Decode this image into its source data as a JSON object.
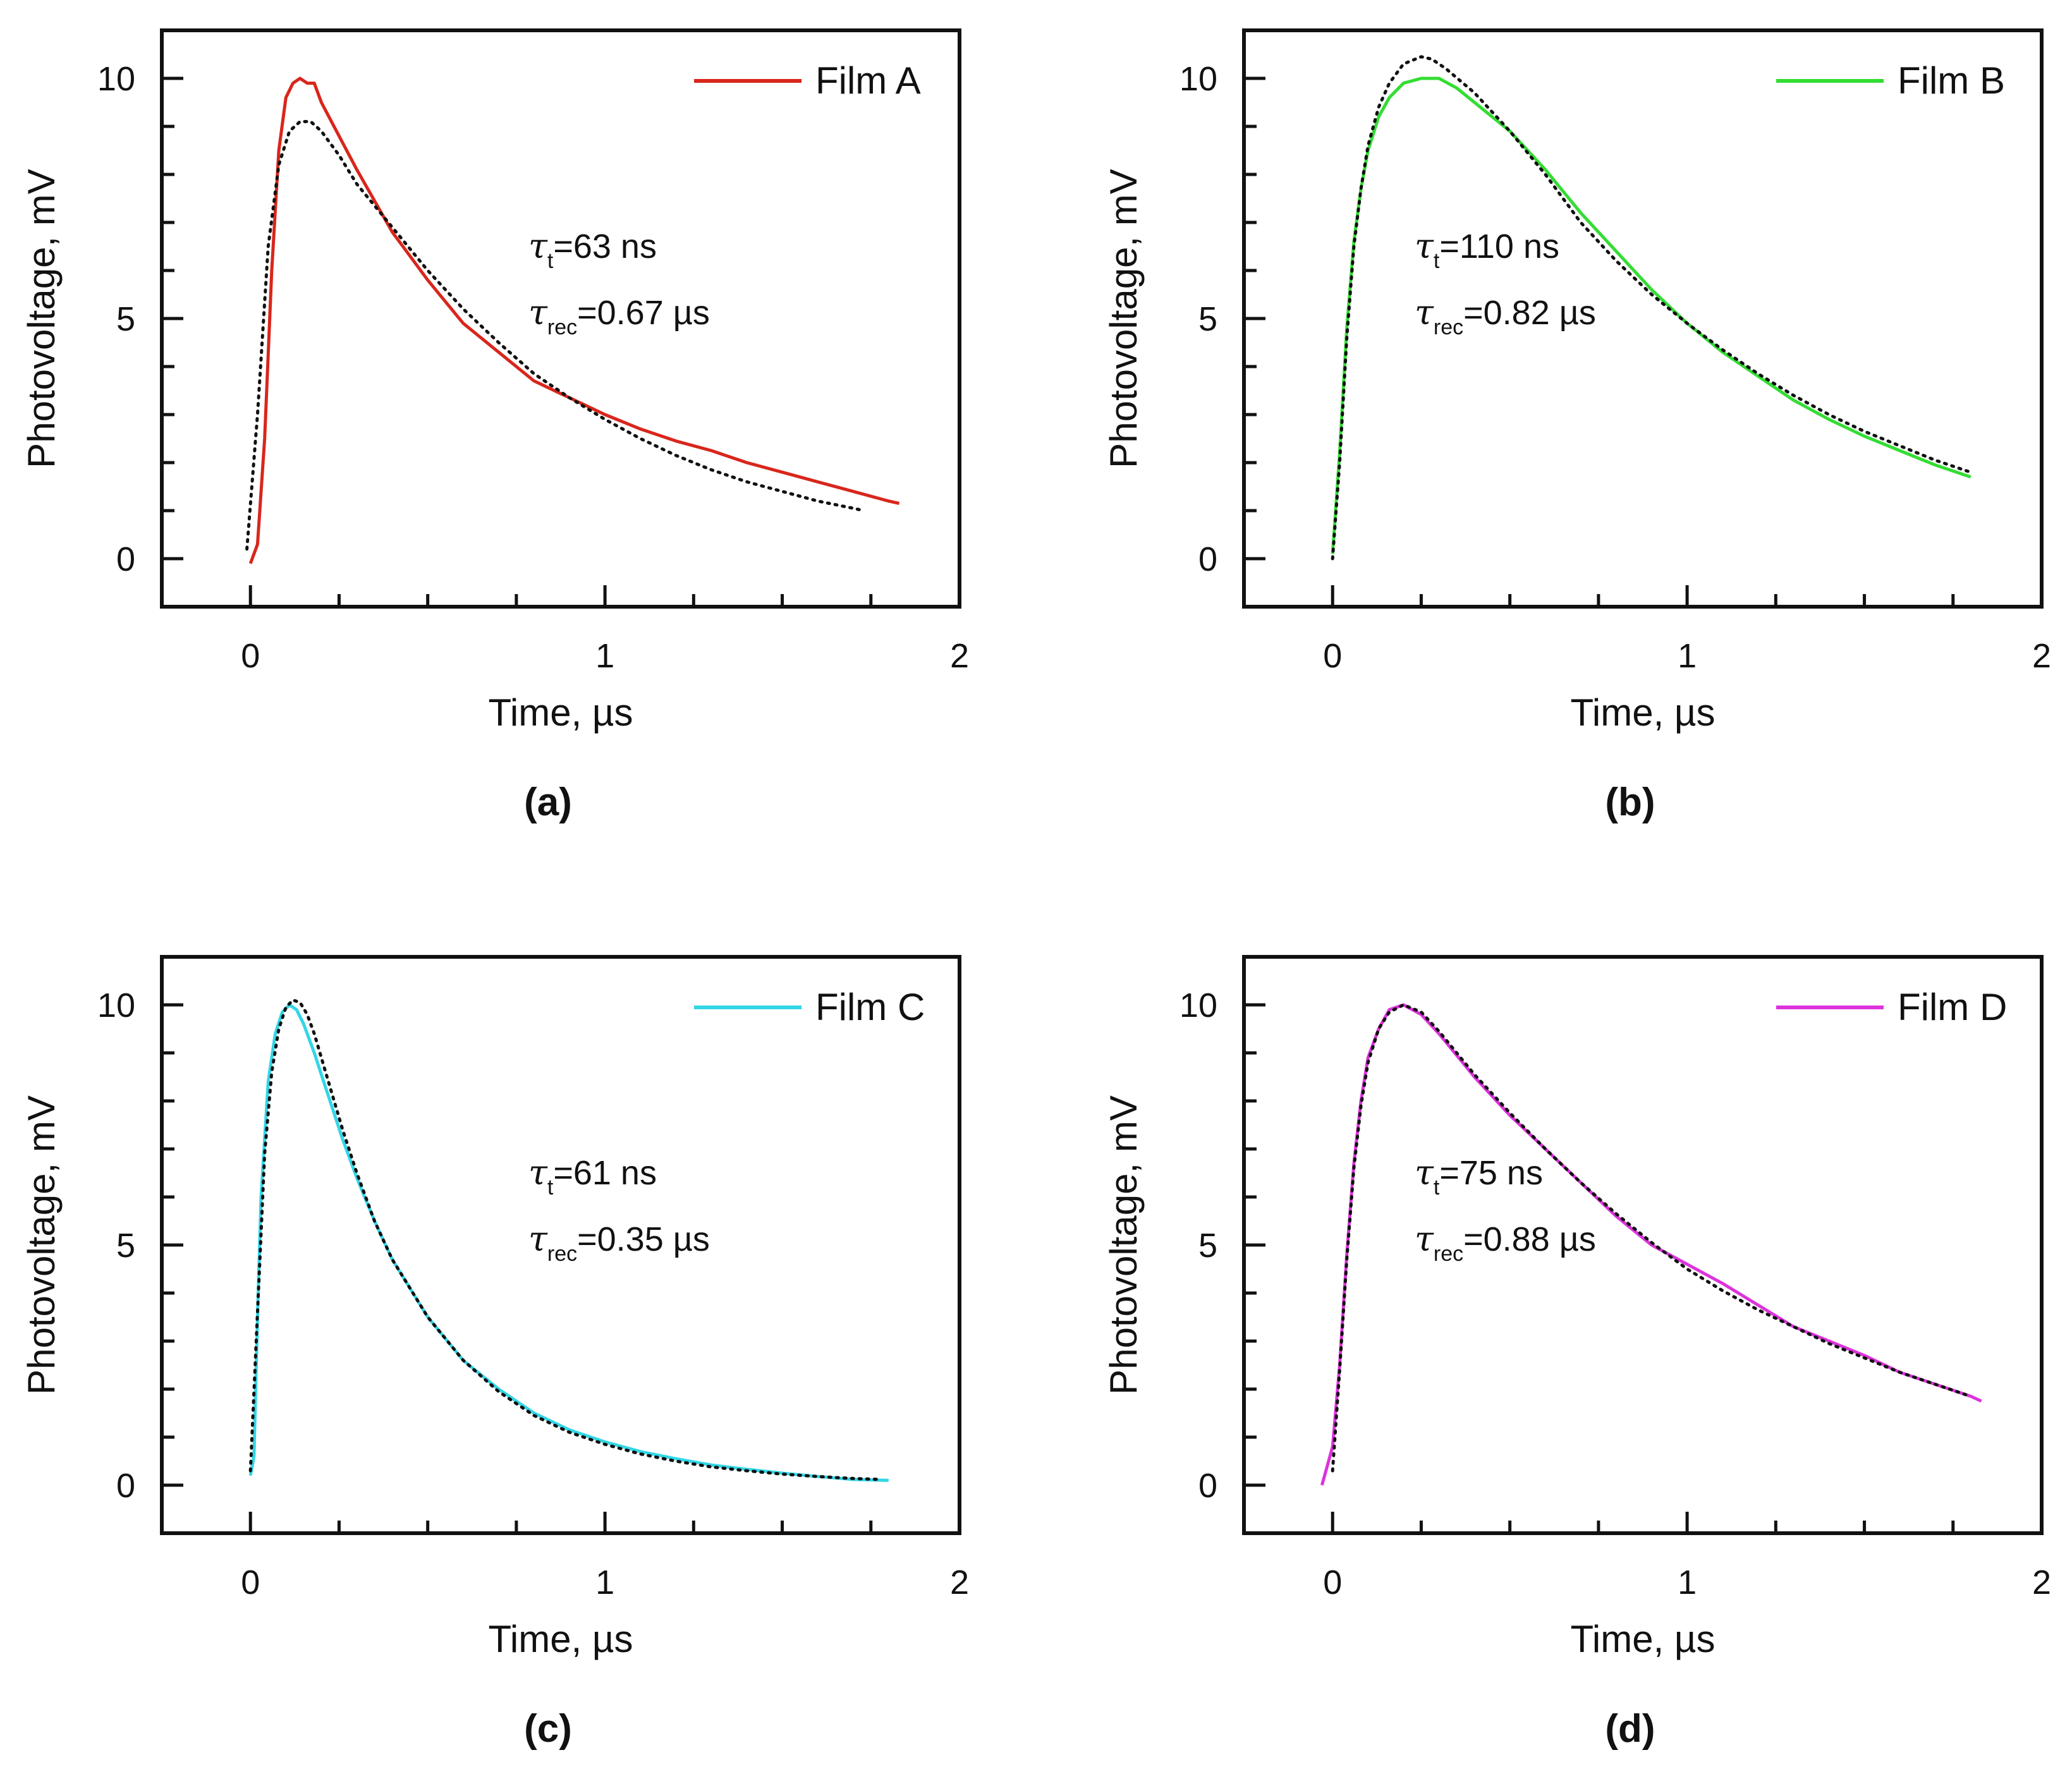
{
  "figure": {
    "panels": [
      {
        "caption": "(a)",
        "legend_label": "Film A",
        "color": "#d9261c",
        "tau_t_text": "=63 ns",
        "tau_t_sub": "t",
        "tau_rec_text": "=0.67 µs",
        "tau_rec_sub": "rec"
      },
      {
        "caption": "(b)",
        "legend_label": "Film B",
        "color": "#33dd33",
        "tau_t_text": "=110 ns",
        "tau_t_sub": "t",
        "tau_rec_text": "=0.82 µs",
        "tau_rec_sub": "rec"
      },
      {
        "caption": "(c)",
        "legend_label": "Film C",
        "color": "#33d6e6",
        "tau_t_text": "=61 ns",
        "tau_t_sub": "t",
        "tau_rec_text": "=0.35 µs",
        "tau_rec_sub": "rec"
      },
      {
        "caption": "(d)",
        "legend_label": "Film D",
        "color": "#dd33dd",
        "tau_t_text": "=75 ns",
        "tau_t_sub": "t",
        "tau_rec_text": "=0.88 µs",
        "tau_rec_sub": "rec"
      }
    ],
    "tau_symbol": "τ"
  },
  "chart_data": [
    {
      "type": "line",
      "xlabel": "Time, µs",
      "ylabel": "Photovoltage, mV",
      "xlim": [
        -0.25,
        2.0
      ],
      "ylim": [
        -1.0,
        11.0
      ],
      "x_ticks": [
        0,
        1,
        2
      ],
      "y_ticks": [
        0,
        5,
        10
      ],
      "legend_position": "top-right",
      "grid": false,
      "series": [
        {
          "name": "Film A",
          "style": "solid",
          "x": [
            0.0,
            0.02,
            0.04,
            0.06,
            0.08,
            0.1,
            0.12,
            0.14,
            0.16,
            0.18,
            0.2,
            0.25,
            0.3,
            0.4,
            0.5,
            0.6,
            0.7,
            0.8,
            0.9,
            1.0,
            1.1,
            1.2,
            1.3,
            1.4,
            1.5,
            1.6,
            1.7,
            1.8,
            1.83
          ],
          "y": [
            -0.1,
            0.3,
            2.5,
            6.0,
            8.5,
            9.6,
            9.9,
            10.0,
            9.9,
            9.9,
            9.5,
            8.8,
            8.1,
            6.8,
            5.8,
            4.9,
            4.3,
            3.7,
            3.35,
            3.0,
            2.7,
            2.45,
            2.25,
            2.0,
            1.8,
            1.6,
            1.4,
            1.2,
            1.15
          ]
        },
        {
          "name": "",
          "style": "dotted",
          "x": [
            -0.01,
            0.02,
            0.05,
            0.08,
            0.11,
            0.14,
            0.17,
            0.2,
            0.25,
            0.3,
            0.4,
            0.5,
            0.6,
            0.7,
            0.8,
            0.9,
            1.0,
            1.1,
            1.2,
            1.3,
            1.4,
            1.5,
            1.6,
            1.7,
            1.73
          ],
          "y": [
            0.2,
            3.0,
            6.5,
            8.2,
            8.9,
            9.1,
            9.1,
            8.9,
            8.4,
            7.8,
            6.9,
            6.0,
            5.2,
            4.5,
            3.85,
            3.35,
            2.9,
            2.5,
            2.15,
            1.85,
            1.6,
            1.4,
            1.2,
            1.05,
            1.0
          ]
        }
      ]
    },
    {
      "type": "line",
      "xlabel": "Time, µs",
      "ylabel": "Photovoltage, mV",
      "xlim": [
        -0.25,
        2.0
      ],
      "ylim": [
        -1.0,
        11.0
      ],
      "x_ticks": [
        0,
        1,
        2
      ],
      "y_ticks": [
        0,
        5,
        10
      ],
      "legend_position": "top-right",
      "grid": false,
      "series": [
        {
          "name": "Film B",
          "style": "solid",
          "x": [
            0.0,
            0.02,
            0.04,
            0.06,
            0.08,
            0.1,
            0.13,
            0.16,
            0.2,
            0.25,
            0.3,
            0.35,
            0.4,
            0.5,
            0.6,
            0.7,
            0.8,
            0.9,
            1.0,
            1.1,
            1.2,
            1.3,
            1.4,
            1.5,
            1.6,
            1.7,
            1.8
          ],
          "y": [
            0.1,
            2.2,
            4.8,
            6.6,
            7.7,
            8.5,
            9.2,
            9.6,
            9.9,
            10.0,
            10.0,
            9.8,
            9.5,
            8.9,
            8.1,
            7.2,
            6.4,
            5.6,
            4.9,
            4.3,
            3.8,
            3.3,
            2.9,
            2.55,
            2.25,
            1.95,
            1.7
          ]
        },
        {
          "name": "",
          "style": "dotted",
          "x": [
            0.0,
            0.02,
            0.04,
            0.06,
            0.08,
            0.1,
            0.13,
            0.16,
            0.2,
            0.25,
            0.28,
            0.32,
            0.4,
            0.5,
            0.6,
            0.7,
            0.8,
            0.9,
            1.0,
            1.1,
            1.2,
            1.3,
            1.4,
            1.5,
            1.6,
            1.7,
            1.8
          ],
          "y": [
            0.0,
            2.0,
            4.6,
            6.5,
            7.7,
            8.6,
            9.4,
            9.9,
            10.3,
            10.45,
            10.4,
            10.2,
            9.7,
            8.9,
            8.0,
            7.0,
            6.2,
            5.5,
            4.9,
            4.35,
            3.85,
            3.4,
            3.0,
            2.65,
            2.35,
            2.05,
            1.8
          ]
        }
      ]
    },
    {
      "type": "line",
      "xlabel": "Time, µs",
      "ylabel": "Photovoltage, mV",
      "xlim": [
        -0.25,
        2.0
      ],
      "ylim": [
        -1.0,
        11.0
      ],
      "x_ticks": [
        0,
        1,
        2
      ],
      "y_ticks": [
        0,
        5,
        10
      ],
      "legend_position": "top-right",
      "grid": false,
      "series": [
        {
          "name": "Film C",
          "style": "solid",
          "x": [
            0.0,
            0.01,
            0.02,
            0.03,
            0.05,
            0.07,
            0.09,
            0.11,
            0.13,
            0.15,
            0.18,
            0.22,
            0.26,
            0.3,
            0.35,
            0.4,
            0.5,
            0.6,
            0.7,
            0.8,
            0.9,
            1.0,
            1.1,
            1.2,
            1.3,
            1.4,
            1.5,
            1.6,
            1.7,
            1.8
          ],
          "y": [
            0.2,
            0.6,
            3.5,
            6.0,
            8.4,
            9.4,
            9.85,
            10.0,
            9.9,
            9.6,
            9.0,
            8.1,
            7.2,
            6.4,
            5.5,
            4.7,
            3.5,
            2.6,
            2.0,
            1.5,
            1.15,
            0.9,
            0.7,
            0.55,
            0.42,
            0.33,
            0.25,
            0.18,
            0.12,
            0.1
          ]
        },
        {
          "name": "",
          "style": "dotted",
          "x": [
            0.0,
            0.02,
            0.04,
            0.06,
            0.08,
            0.1,
            0.12,
            0.14,
            0.16,
            0.18,
            0.22,
            0.26,
            0.3,
            0.35,
            0.4,
            0.5,
            0.6,
            0.7,
            0.8,
            0.9,
            1.0,
            1.1,
            1.2,
            1.3,
            1.4,
            1.5,
            1.6,
            1.7,
            1.78
          ],
          "y": [
            0.3,
            3.6,
            6.9,
            8.6,
            9.5,
            9.95,
            10.1,
            10.05,
            9.8,
            9.4,
            8.4,
            7.4,
            6.5,
            5.5,
            4.7,
            3.5,
            2.6,
            1.95,
            1.45,
            1.1,
            0.85,
            0.65,
            0.5,
            0.38,
            0.3,
            0.23,
            0.18,
            0.14,
            0.12
          ]
        }
      ]
    },
    {
      "type": "line",
      "xlabel": "Time, µs",
      "ylabel": "Photovoltage, mV",
      "xlim": [
        -0.25,
        2.0
      ],
      "ylim": [
        -1.0,
        11.0
      ],
      "x_ticks": [
        0,
        1,
        2
      ],
      "y_ticks": [
        0,
        5,
        10
      ],
      "legend_position": "top-right",
      "grid": false,
      "series": [
        {
          "name": "Film D",
          "style": "solid",
          "x": [
            -0.03,
            0.0,
            0.02,
            0.04,
            0.06,
            0.08,
            0.1,
            0.13,
            0.16,
            0.2,
            0.25,
            0.3,
            0.4,
            0.5,
            0.6,
            0.7,
            0.8,
            0.9,
            1.0,
            1.1,
            1.2,
            1.3,
            1.4,
            1.5,
            1.6,
            1.7,
            1.8,
            1.83
          ],
          "y": [
            0.0,
            0.8,
            2.5,
            4.8,
            6.7,
            8.0,
            8.9,
            9.5,
            9.9,
            10.0,
            9.8,
            9.4,
            8.5,
            7.7,
            7.0,
            6.3,
            5.6,
            5.0,
            4.6,
            4.2,
            3.75,
            3.3,
            3.0,
            2.7,
            2.35,
            2.1,
            1.85,
            1.75
          ]
        },
        {
          "name": "",
          "style": "dotted",
          "x": [
            0.0,
            0.02,
            0.04,
            0.06,
            0.08,
            0.1,
            0.13,
            0.16,
            0.2,
            0.25,
            0.3,
            0.4,
            0.5,
            0.6,
            0.7,
            0.8,
            0.9,
            1.0,
            1.1,
            1.2,
            1.3,
            1.4,
            1.5,
            1.6,
            1.7,
            1.8
          ],
          "y": [
            0.3,
            2.4,
            4.7,
            6.6,
            7.9,
            8.8,
            9.5,
            9.85,
            10.0,
            9.85,
            9.45,
            8.55,
            7.75,
            7.0,
            6.3,
            5.65,
            5.05,
            4.5,
            4.05,
            3.65,
            3.3,
            2.95,
            2.65,
            2.35,
            2.1,
            1.85
          ]
        }
      ]
    }
  ]
}
